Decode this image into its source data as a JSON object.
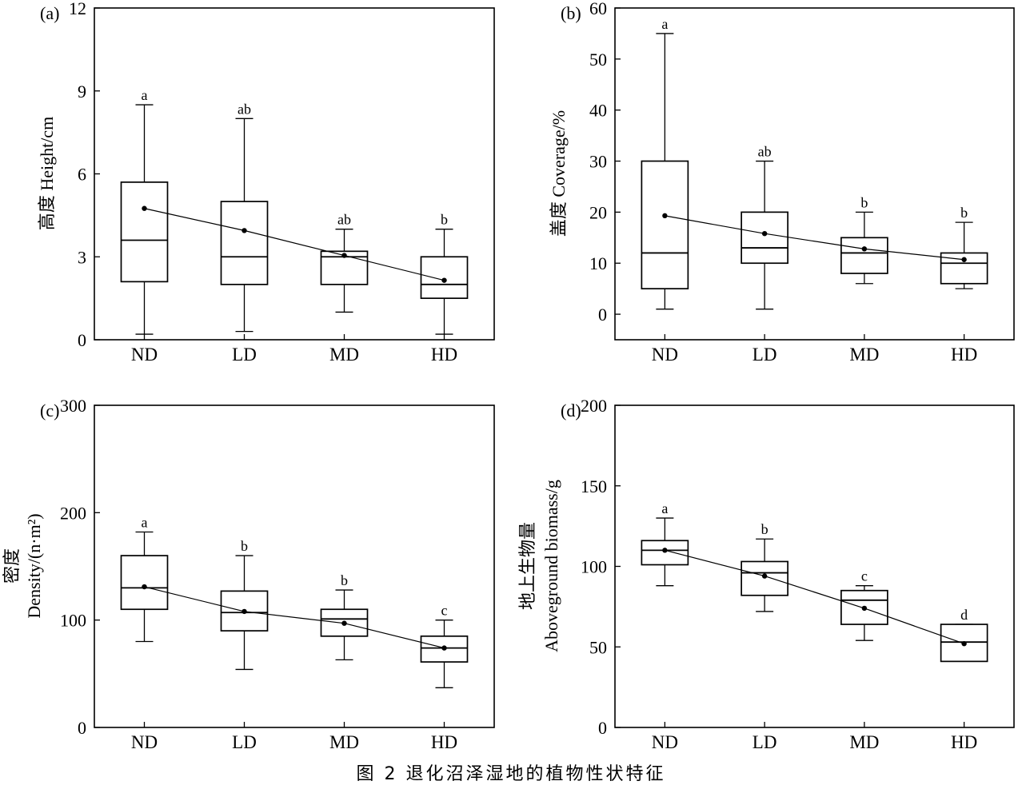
{
  "figure": {
    "caption": "图 2  退化沼泽湿地的植物性状特征"
  },
  "chart_data": [
    {
      "id": "a",
      "type": "boxplot",
      "panel_label": "(a)",
      "ylabel": "高度 Height/cm",
      "xlabel": "",
      "categories": [
        "ND",
        "LD",
        "MD",
        "HD"
      ],
      "ylim": [
        0,
        12
      ],
      "yticks": [
        0,
        3,
        6,
        9,
        12
      ],
      "boxes": [
        {
          "min": 0.2,
          "q1": 2.1,
          "median": 3.6,
          "q3": 5.7,
          "max": 8.5,
          "mean": 4.75,
          "sig": "a"
        },
        {
          "min": 0.3,
          "q1": 2.0,
          "median": 3.0,
          "q3": 5.0,
          "max": 8.0,
          "mean": 3.95,
          "sig": "ab"
        },
        {
          "min": 1.0,
          "q1": 2.0,
          "median": 3.0,
          "q3": 3.2,
          "max": 4.0,
          "mean": 3.05,
          "sig": "ab"
        },
        {
          "min": 0.2,
          "q1": 1.5,
          "median": 2.0,
          "q3": 3.0,
          "max": 4.0,
          "mean": 2.15,
          "sig": "b"
        }
      ],
      "mean_line": true,
      "grid": false
    },
    {
      "id": "b",
      "type": "boxplot",
      "panel_label": "(b)",
      "ylabel": "盖度 Coverage/%",
      "xlabel": "",
      "categories": [
        "ND",
        "LD",
        "MD",
        "HD"
      ],
      "ylim": [
        -5,
        60
      ],
      "yticks": [
        0,
        10,
        20,
        30,
        40,
        50,
        60
      ],
      "boxes": [
        {
          "min": 1,
          "q1": 5,
          "median": 12,
          "q3": 30,
          "max": 55,
          "mean": 19.3,
          "sig": "a"
        },
        {
          "min": 1,
          "q1": 10,
          "median": 13,
          "q3": 20,
          "max": 30,
          "mean": 15.8,
          "sig": "ab"
        },
        {
          "min": 6,
          "q1": 8,
          "median": 12,
          "q3": 15,
          "max": 20,
          "mean": 12.8,
          "sig": "b"
        },
        {
          "min": 5,
          "q1": 6,
          "median": 10,
          "q3": 12,
          "max": 18,
          "mean": 10.7,
          "sig": "b"
        }
      ],
      "mean_line": true,
      "grid": false
    },
    {
      "id": "c",
      "type": "boxplot",
      "panel_label": "(c)",
      "ylabel": "密度",
      "ylabel2": "Density/(n·m²)",
      "xlabel": "",
      "categories": [
        "ND",
        "LD",
        "MD",
        "HD"
      ],
      "ylim": [
        0,
        300
      ],
      "yticks": [
        0,
        100,
        200,
        300
      ],
      "boxes": [
        {
          "min": 80,
          "q1": 110,
          "median": 130,
          "q3": 160,
          "max": 182,
          "mean": 131,
          "sig": "a"
        },
        {
          "min": 54,
          "q1": 90,
          "median": 107,
          "q3": 127,
          "max": 160,
          "mean": 108,
          "sig": "b"
        },
        {
          "min": 63,
          "q1": 85,
          "median": 101,
          "q3": 110,
          "max": 128,
          "mean": 97,
          "sig": "b"
        },
        {
          "min": 37,
          "q1": 61,
          "median": 74,
          "q3": 85,
          "max": 100,
          "mean": 74,
          "sig": "c"
        }
      ],
      "mean_line": true,
      "grid": false
    },
    {
      "id": "d",
      "type": "boxplot",
      "panel_label": "(d)",
      "ylabel": "地上生物量",
      "ylabel2": "Aboveground biomass/g",
      "xlabel": "",
      "categories": [
        "ND",
        "LD",
        "MD",
        "HD"
      ],
      "ylim": [
        0,
        200
      ],
      "yticks": [
        0,
        50,
        100,
        150,
        200
      ],
      "boxes": [
        {
          "min": 88,
          "q1": 101,
          "median": 110,
          "q3": 116,
          "max": 130,
          "mean": 110,
          "sig": "a"
        },
        {
          "min": 72,
          "q1": 82,
          "median": 96,
          "q3": 103,
          "max": 117,
          "mean": 94,
          "sig": "b"
        },
        {
          "min": 54,
          "q1": 64,
          "median": 79,
          "q3": 85,
          "max": 88,
          "mean": 74,
          "sig": "c"
        },
        {
          "min": 41,
          "q1": 41,
          "median": 53,
          "q3": 64,
          "max": 64,
          "mean": 52,
          "sig": "d"
        }
      ],
      "mean_line": true,
      "grid": false
    }
  ]
}
